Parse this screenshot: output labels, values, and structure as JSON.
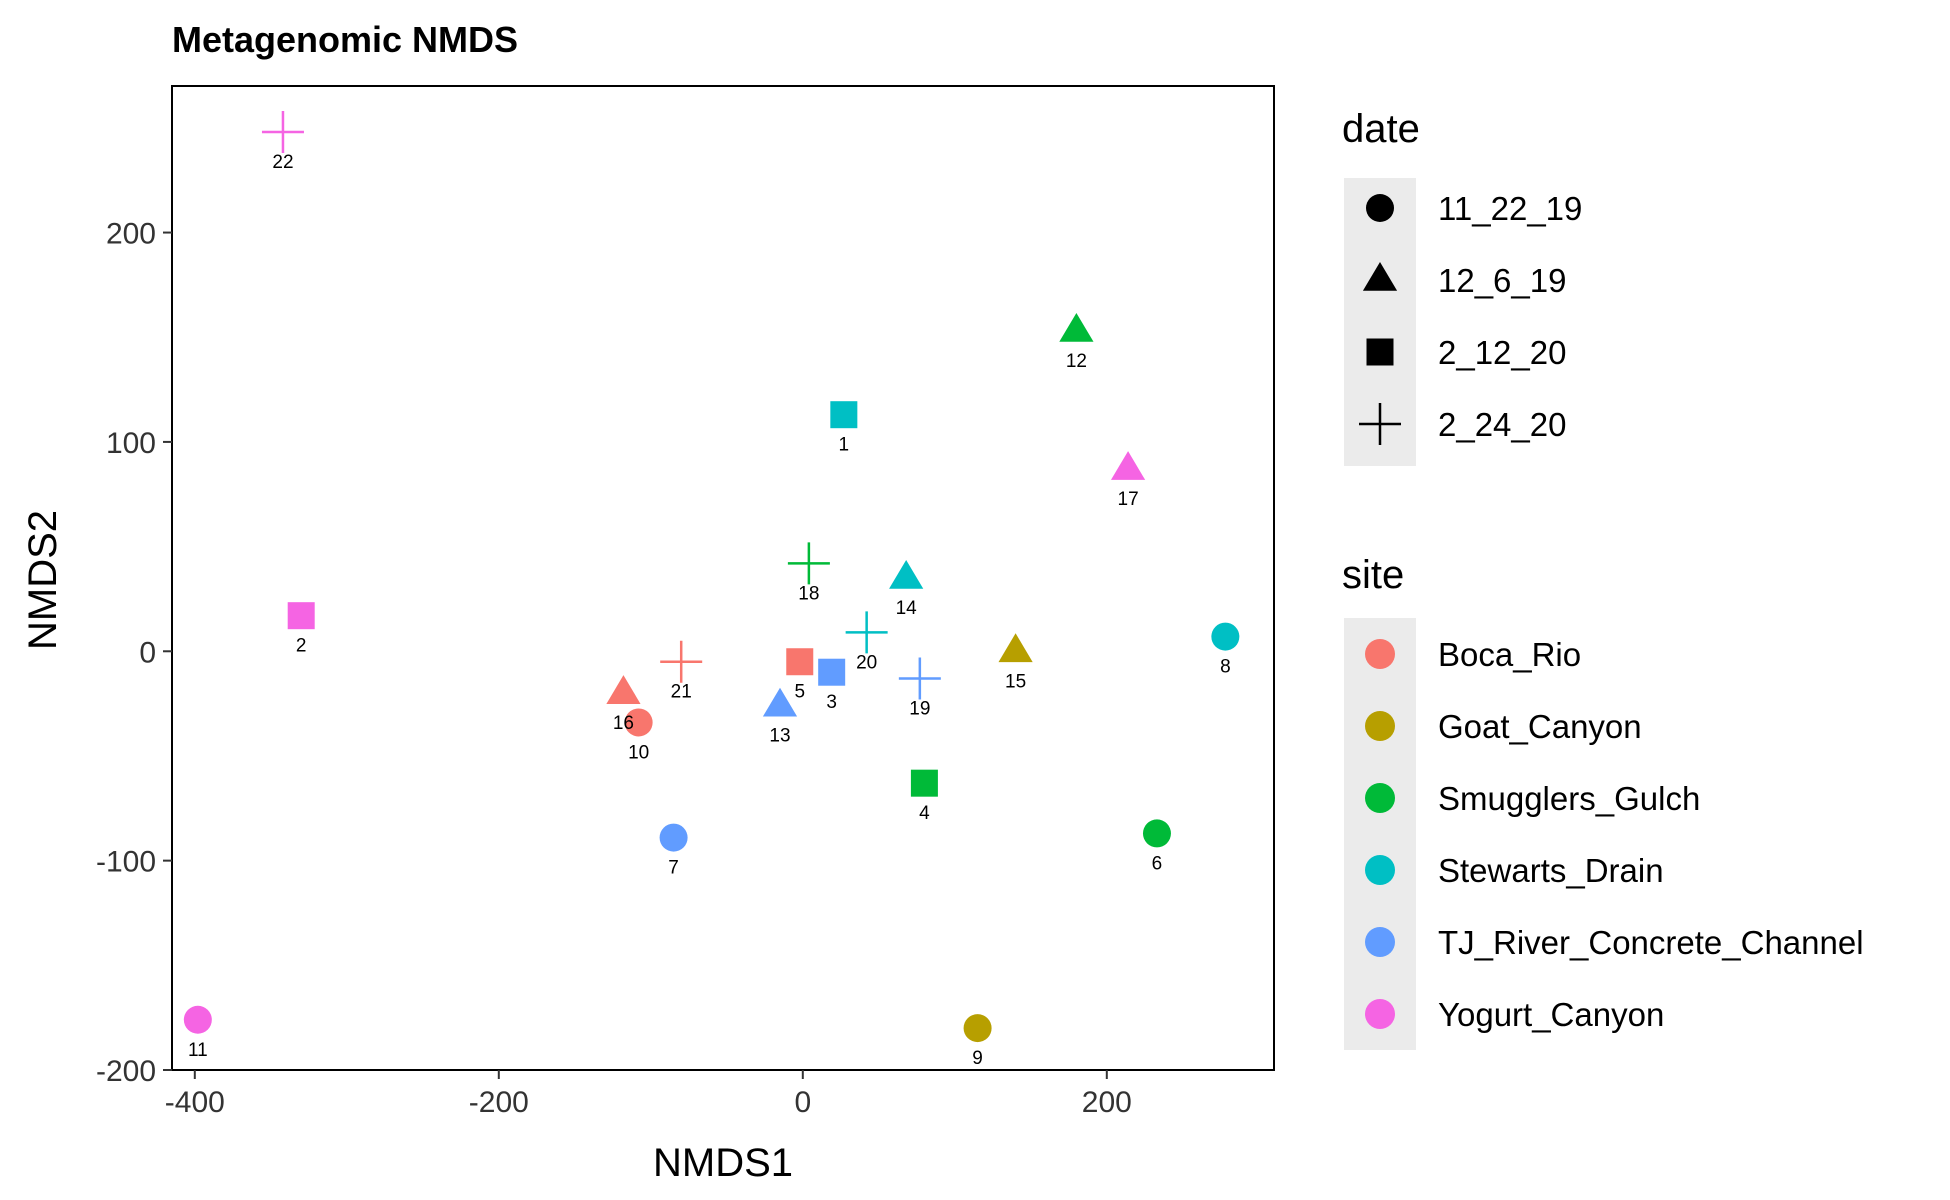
{
  "chart_data": {
    "type": "scatter",
    "title": "Metagenomic NMDS",
    "xlabel": "NMDS1",
    "ylabel": "NMDS2",
    "xlim": [
      -415,
      310
    ],
    "ylim": [
      -200,
      270
    ],
    "xticks": [
      -400,
      -200,
      0,
      200
    ],
    "yticks": [
      -200,
      -100,
      0,
      100,
      200
    ],
    "xtick_labels": [
      "-400",
      "-200",
      "0",
      "200"
    ],
    "ytick_labels": [
      "-200",
      "-100",
      "0",
      "100",
      "200"
    ],
    "grid": false,
    "legend_placement": "right",
    "legends": {
      "date": {
        "title": "date",
        "items": [
          {
            "label": "11_22_19",
            "shape": "circle"
          },
          {
            "label": "12_6_19",
            "shape": "triangle"
          },
          {
            "label": "2_12_20",
            "shape": "square"
          },
          {
            "label": "2_24_20",
            "shape": "plus"
          }
        ]
      },
      "site": {
        "title": "site",
        "items": [
          {
            "label": "Boca_Rio",
            "color": "#F8766D"
          },
          {
            "label": "Goat_Canyon",
            "color": "#B79F00"
          },
          {
            "label": "Smugglers_Gulch",
            "color": "#00BA38"
          },
          {
            "label": "Stewarts_Drain",
            "color": "#00BFC4"
          },
          {
            "label": "TJ_River_Concrete_Channel",
            "color": "#619CFF"
          },
          {
            "label": "Yogurt_Canyon",
            "color": "#F564E3"
          }
        ]
      }
    },
    "points": [
      {
        "label": "1",
        "x": 27,
        "y": 113,
        "site": "Stewarts_Drain",
        "date": "2_12_20"
      },
      {
        "label": "2",
        "x": -330,
        "y": 17,
        "site": "Yogurt_Canyon",
        "date": "2_12_20"
      },
      {
        "label": "3",
        "x": 19,
        "y": -10,
        "site": "TJ_River_Concrete_Channel",
        "date": "2_12_20"
      },
      {
        "label": "4",
        "x": 80,
        "y": -63,
        "site": "Smugglers_Gulch",
        "date": "2_12_20"
      },
      {
        "label": "5",
        "x": -2,
        "y": -5,
        "site": "Boca_Rio",
        "date": "2_12_20"
      },
      {
        "label": "6",
        "x": 233,
        "y": -87,
        "site": "Smugglers_Gulch",
        "date": "11_22_19"
      },
      {
        "label": "7",
        "x": -85,
        "y": -89,
        "site": "TJ_River_Concrete_Channel",
        "date": "11_22_19"
      },
      {
        "label": "8",
        "x": 278,
        "y": 7,
        "site": "Stewarts_Drain",
        "date": "11_22_19"
      },
      {
        "label": "9",
        "x": 115,
        "y": -180,
        "site": "Goat_Canyon",
        "date": "11_22_19"
      },
      {
        "label": "10",
        "x": -108,
        "y": -34,
        "site": "Boca_Rio",
        "date": "11_22_19"
      },
      {
        "label": "11",
        "x": -398,
        "y": -176,
        "site": "Yogurt_Canyon",
        "date": "11_22_19"
      },
      {
        "label": "12",
        "x": 180,
        "y": 153,
        "site": "Smugglers_Gulch",
        "date": "12_6_19"
      },
      {
        "label": "13",
        "x": -15,
        "y": -26,
        "site": "TJ_River_Concrete_Channel",
        "date": "12_6_19"
      },
      {
        "label": "14",
        "x": 68,
        "y": 35,
        "site": "Stewarts_Drain",
        "date": "12_6_19"
      },
      {
        "label": "15",
        "x": 140,
        "y": 0,
        "site": "Goat_Canyon",
        "date": "12_6_19"
      },
      {
        "label": "16",
        "x": -118,
        "y": -20,
        "site": "Boca_Rio",
        "date": "12_6_19"
      },
      {
        "label": "17",
        "x": 214,
        "y": 87,
        "site": "Yogurt_Canyon",
        "date": "12_6_19"
      },
      {
        "label": "18",
        "x": 4,
        "y": 42,
        "site": "Smugglers_Gulch",
        "date": "2_24_20"
      },
      {
        "label": "19",
        "x": 77,
        "y": -13,
        "site": "TJ_River_Concrete_Channel",
        "date": "2_24_20"
      },
      {
        "label": "20",
        "x": 42,
        "y": 9,
        "site": "Stewarts_Drain",
        "date": "2_24_20"
      },
      {
        "label": "21",
        "x": -80,
        "y": -5,
        "site": "Boca_Rio",
        "date": "2_24_20"
      },
      {
        "label": "22",
        "x": -342,
        "y": 248,
        "site": "Yogurt_Canyon",
        "date": "2_24_20"
      }
    ]
  }
}
